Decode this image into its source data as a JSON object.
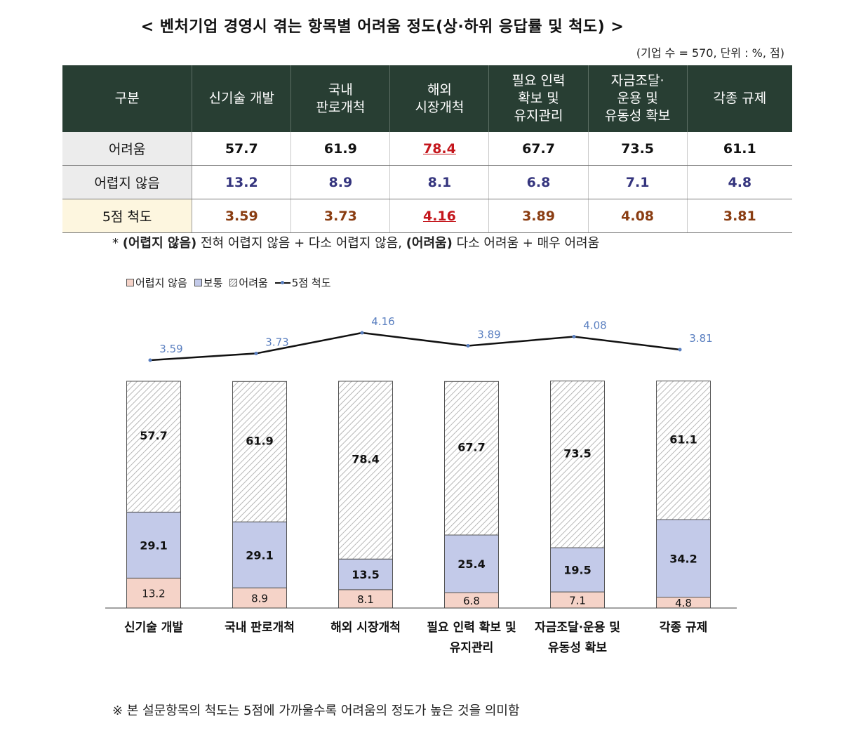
{
  "title": "< 벤처기업 경영시 겪는 항목별 어려움 정도(상·하위 응답률 및 척도) >",
  "unit_note": "(기업 수 = 570, 단위 : %, 점)",
  "table": {
    "header": [
      "구분",
      "신기술 개발",
      "국내\n판로개척",
      "해외\n시장개척",
      "필요 인력\n확보 및\n유지관리",
      "자금조달·\n운용 및\n유동성 확보",
      "각종 규제"
    ],
    "rows": [
      {
        "label": "어려움",
        "values": [
          "57.7",
          "61.9",
          "78.4",
          "67.7",
          "73.5",
          "61.1"
        ]
      },
      {
        "label": "어렵지 않음",
        "values": [
          "13.2",
          "8.9",
          "8.1",
          "6.8",
          "7.1",
          "4.8"
        ]
      },
      {
        "label": "5점 척도",
        "values": [
          "3.59",
          "3.73",
          "4.16",
          "3.89",
          "4.08",
          "3.81"
        ]
      }
    ]
  },
  "footnote1": {
    "star": "*",
    "part1_bold": "(어렵지 않음)",
    "part1": " 전혀 어렵지 않음 + 다소 어렵지 않음,",
    "part2_bold": "(어려움)",
    "part2": " 다소 어려움 + 매우 어려움"
  },
  "legend": {
    "not_difficult": "어렵지 않음",
    "normal": "보통",
    "difficult": "어려움",
    "scale": "5점 척도"
  },
  "chart_data": {
    "type": "bar",
    "stacked": true,
    "categories": [
      "신기술 개발",
      "국내 판로개척",
      "해외 시장개척",
      "필요 인력 확보 및\n유지관리",
      "자금조달·운용 및\n유동성 확보",
      "각종 규제"
    ],
    "series": [
      {
        "name": "어렵지 않음",
        "values": [
          13.2,
          8.9,
          8.1,
          6.8,
          7.1,
          4.8
        ],
        "color": "#f5d3c8"
      },
      {
        "name": "보통",
        "values": [
          29.1,
          29.1,
          13.5,
          25.4,
          19.5,
          34.2
        ],
        "color": "#c3cae9"
      },
      {
        "name": "어려움",
        "values": [
          57.7,
          61.9,
          78.4,
          67.7,
          73.5,
          61.1
        ],
        "color": "#ffffff"
      }
    ],
    "line_series": {
      "name": "5점 척도",
      "values": [
        3.59,
        3.73,
        4.16,
        3.89,
        4.08,
        3.81
      ],
      "color": "#111111",
      "marker_color": "#5a7fc0"
    },
    "ylim": [
      0,
      100
    ],
    "legend_position": "top-left"
  },
  "footnote2": "※ 본 설문항목의 척도는 5점에 가까울수록 어려움의 정도가 높은 것을 의미함",
  "colors": {
    "header_bg": "#283e33",
    "highlight": "#c4161c",
    "scale_text": "#8a3d12",
    "nodiff_text": "#35357e",
    "line_label": "#5a7fc0"
  }
}
